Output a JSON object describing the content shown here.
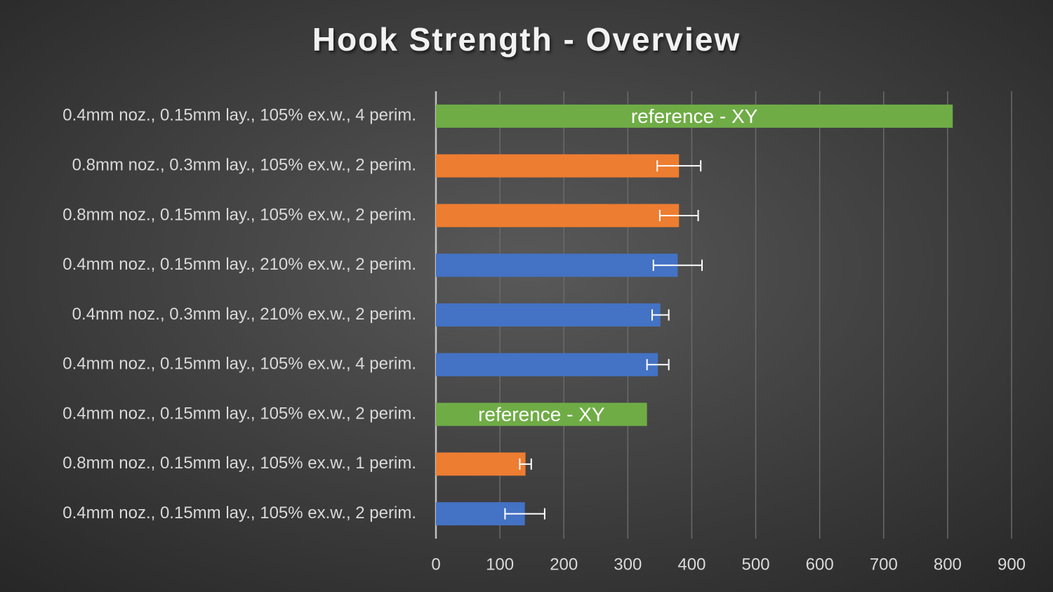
{
  "chart_data": {
    "type": "bar",
    "orientation": "horizontal",
    "title": "Hook Strength - Overview",
    "categories": [
      "0.4mm noz., 0.15mm lay., 105% ex.w., 4 perim.",
      "0.8mm noz., 0.3mm lay., 105% ex.w., 2 perim.",
      "0.8mm noz., 0.15mm lay., 105% ex.w., 2 perim.",
      "0.4mm noz., 0.15mm lay., 210% ex.w., 2 perim.",
      "0.4mm noz., 0.3mm lay., 210% ex.w., 2 perim.",
      "0.4mm noz., 0.15mm lay., 105% ex.w., 4 perim.",
      "0.4mm noz., 0.15mm lay., 105% ex.w., 2 perim.",
      "0.8mm noz., 0.15mm lay., 105% ex.w., 1 perim.",
      "0.4mm noz., 0.15mm lay., 105% ex.w., 2 perim."
    ],
    "values": [
      808,
      380,
      380,
      378,
      351,
      347,
      330,
      140,
      139
    ],
    "errors": [
      null,
      34,
      30,
      38,
      13,
      17,
      null,
      9,
      31
    ],
    "colors": [
      "#6fac46",
      "#ed7d31",
      "#ed7d31",
      "#4472c4",
      "#4472c4",
      "#4472c4",
      "#6fac46",
      "#ed7d31",
      "#4472c4"
    ],
    "bar_labels": [
      "reference - XY",
      null,
      null,
      null,
      null,
      null,
      "reference - XY",
      null,
      null
    ],
    "xlim": [
      0,
      900
    ],
    "xticks": [
      0,
      100,
      200,
      300,
      400,
      500,
      600,
      700,
      800,
      900
    ],
    "grid": true
  }
}
